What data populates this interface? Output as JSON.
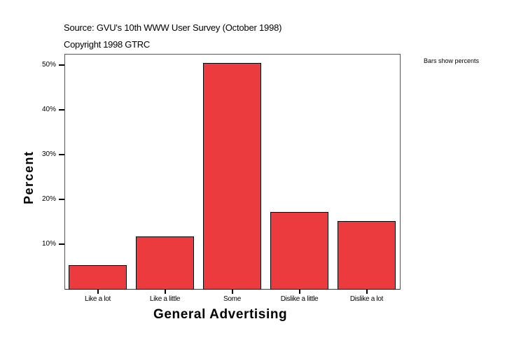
{
  "header": {
    "source": "Source: GVU's 10th WWW User Survey (October 1998)",
    "copyright": "Copyright 1998 GTRC",
    "note": "Bars show percents"
  },
  "chart_data": {
    "type": "bar",
    "title": "",
    "xlabel": "General Advertising",
    "ylabel": "Percent",
    "categories": [
      "Like a lot",
      "Like a little",
      "Some",
      "Dislike a little",
      "Dislike a lot"
    ],
    "values": [
      5.3,
      11.7,
      50.4,
      17.2,
      15.2
    ],
    "yticks": [
      "10%",
      "20%",
      "30%",
      "40%",
      "50%"
    ],
    "ylim": [
      0,
      52.5
    ],
    "color": "#ec3b3e",
    "grid": false,
    "legend": "none"
  }
}
